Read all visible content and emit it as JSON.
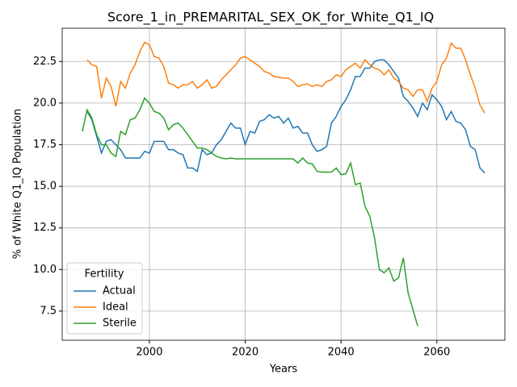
{
  "chart_data": {
    "type": "line",
    "title": "Score_1_in_PREMARITAL_SEX_OK_for_White_Q1_IQ",
    "xlabel": "Years",
    "ylabel": "% of White Q1_IQ Population",
    "legend_title": "Fertility",
    "legend": "lower left",
    "grid": true,
    "xlim": [
      1981.8,
      2074.2
    ],
    "ylim": [
      5.75,
      24.5
    ],
    "xticks": [
      2000,
      2020,
      2040,
      2060
    ],
    "yticks": [
      7.5,
      {
        "value": 10,
        "label": "10.0"
      },
      12.5,
      {
        "value": 15,
        "label": "15.0"
      },
      17.5,
      {
        "value": 20,
        "label": "20.0"
      },
      22.5
    ],
    "x": [
      1986,
      1987,
      1988,
      1989,
      1990,
      1991,
      1992,
      1993,
      1994,
      1995,
      1996,
      1997,
      1998,
      1999,
      2000,
      2001,
      2002,
      2003,
      2004,
      2005,
      2006,
      2007,
      2008,
      2009,
      2010,
      2011,
      2012,
      2013,
      2014,
      2015,
      2016,
      2017,
      2018,
      2019,
      2020,
      2021,
      2022,
      2023,
      2024,
      2025,
      2026,
      2027,
      2028,
      2029,
      2030,
      2031,
      2032,
      2033,
      2034,
      2035,
      2036,
      2037,
      2038,
      2039,
      2040,
      2041,
      2042,
      2043,
      2044,
      2045,
      2046,
      2047,
      2048,
      2049,
      2050,
      2051,
      2052,
      2053,
      2054,
      2055,
      2056,
      2057,
      2058,
      2059,
      2060,
      2061,
      2062,
      2063,
      2064,
      2065,
      2066,
      2067,
      2068,
      2069,
      2070
    ],
    "series": [
      {
        "name": "Actual",
        "color": "#1f77b4",
        "values": [
          null,
          19.5,
          19.0,
          18.0,
          17.0,
          17.7,
          17.8,
          17.5,
          17.2,
          16.7,
          16.7,
          16.7,
          16.7,
          17.1,
          17.0,
          17.7,
          17.7,
          17.7,
          17.2,
          17.2,
          17.0,
          16.9,
          16.1,
          16.1,
          15.9,
          17.2,
          16.9,
          17.0,
          17.5,
          17.8,
          18.3,
          18.8,
          18.5,
          18.5,
          17.5,
          18.3,
          18.2,
          18.9,
          19.0,
          19.3,
          19.1,
          19.2,
          18.8,
          19.1,
          18.5,
          18.6,
          18.2,
          18.2,
          17.5,
          17.1,
          17.2,
          17.4,
          18.8,
          19.2,
          19.8,
          20.2,
          20.8,
          21.6,
          21.6,
          22.1,
          22.1,
          22.5,
          22.6,
          22.6,
          22.3,
          21.9,
          21.5,
          20.4,
          20.1,
          19.7,
          19.2,
          20.0,
          19.6,
          20.5,
          20.2,
          19.8,
          19.0,
          19.5,
          18.9,
          18.8,
          18.4,
          17.4,
          17.2,
          16.1,
          15.8
        ]
      },
      {
        "name": "Ideal",
        "color": "#ff7f0e",
        "values": [
          null,
          22.6,
          22.3,
          22.2,
          20.3,
          21.5,
          21.0,
          19.8,
          21.3,
          20.9,
          21.8,
          22.3,
          23.1,
          23.65,
          23.5,
          22.8,
          22.7,
          22.2,
          21.2,
          21.1,
          20.9,
          21.1,
          21.1,
          21.3,
          20.9,
          21.1,
          21.4,
          20.9,
          21.0,
          21.4,
          21.7,
          22.0,
          22.3,
          22.7,
          22.8,
          22.6,
          22.4,
          22.2,
          21.9,
          21.8,
          21.6,
          21.55,
          21.5,
          21.5,
          21.3,
          21.0,
          21.1,
          21.15,
          21.0,
          21.1,
          21.0,
          21.3,
          21.4,
          21.7,
          21.6,
          22.0,
          22.2,
          22.4,
          22.1,
          22.6,
          22.3,
          22.1,
          22.0,
          21.7,
          22.0,
          21.5,
          21.3,
          20.9,
          20.8,
          20.4,
          20.8,
          20.8,
          20.1,
          20.9,
          21.3,
          22.3,
          22.7,
          23.6,
          23.3,
          23.3,
          22.6,
          21.7,
          20.9,
          19.9,
          19.4
        ]
      },
      {
        "name": "Sterile",
        "color": "#2ca02c",
        "values": [
          18.3,
          19.6,
          19.1,
          18.1,
          17.5,
          17.5,
          17.0,
          16.8,
          18.3,
          18.1,
          19.0,
          19.1,
          19.6,
          20.3,
          20.0,
          19.5,
          19.4,
          19.1,
          18.4,
          18.7,
          18.8,
          18.5,
          18.1,
          17.7,
          17.3,
          17.3,
          17.2,
          17.0,
          16.8,
          16.7,
          16.65,
          16.7,
          16.65,
          16.65,
          16.65,
          16.65,
          16.65,
          16.65,
          16.65,
          16.65,
          16.65,
          16.65,
          16.65,
          16.65,
          16.65,
          16.4,
          16.7,
          16.4,
          16.35,
          15.9,
          15.85,
          15.85,
          15.85,
          16.1,
          15.7,
          15.75,
          16.4,
          15.1,
          15.2,
          13.8,
          13.2,
          11.9,
          10.0,
          9.8,
          10.1,
          9.3,
          9.5,
          10.7,
          8.6,
          7.6,
          6.6,
          null,
          null,
          null,
          null,
          null,
          null,
          null,
          null,
          null,
          null,
          null,
          null,
          null,
          null
        ]
      }
    ]
  }
}
